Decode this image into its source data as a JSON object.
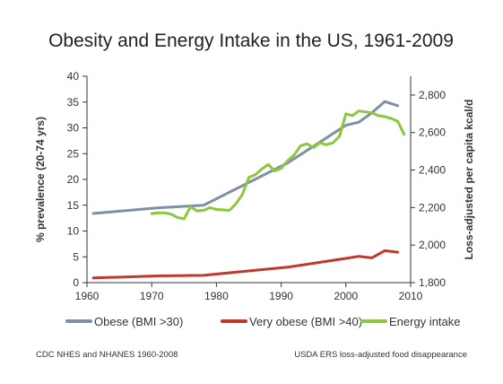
{
  "chart_data": {
    "type": "line",
    "title": "Obesity and Energy Intake in the US, 1961-2009",
    "x": {
      "label": "",
      "range": [
        1960,
        2010
      ],
      "ticks": [
        "1960",
        "1970",
        "1980",
        "1990",
        "2000",
        "2010"
      ],
      "tick_values": [
        1960,
        1970,
        1980,
        1990,
        2000,
        2010
      ]
    },
    "y_left": {
      "label": "% prevalence (20-74 yrs)",
      "range": [
        0,
        40
      ],
      "ticks": [
        "0",
        "5",
        "10",
        "15",
        "20",
        "25",
        "30",
        "35",
        "40"
      ],
      "tick_values": [
        0,
        5,
        10,
        15,
        20,
        25,
        30,
        35,
        40
      ]
    },
    "y_right": {
      "label": "Loss-adjusted per capita kcal/d",
      "range": [
        1800,
        2900
      ],
      "ticks": [
        "1,800",
        "2,000",
        "2,200",
        "2,400",
        "2,600",
        "2,800"
      ],
      "tick_values": [
        1800,
        2000,
        2200,
        2400,
        2600,
        2800
      ]
    },
    "grid": false,
    "legend_position": "bottom",
    "series": [
      {
        "name": "Obese (BMI >30)",
        "axis": "left",
        "color": "#7f8fa6",
        "points": [
          [
            1961,
            13.4
          ],
          [
            1971,
            14.5
          ],
          [
            1978,
            15.0
          ],
          [
            1991,
            23.2
          ],
          [
            2000,
            30.5
          ],
          [
            2002,
            31.1
          ],
          [
            2004,
            32.9
          ],
          [
            2006,
            35.1
          ],
          [
            2008,
            34.3
          ]
        ]
      },
      {
        "name": "Very obese (BMI >40)",
        "axis": "left",
        "color": "#c0392b",
        "points": [
          [
            1961,
            0.9
          ],
          [
            1971,
            1.3
          ],
          [
            1978,
            1.4
          ],
          [
            1991,
            3.0
          ],
          [
            2000,
            4.7
          ],
          [
            2002,
            5.1
          ],
          [
            2004,
            4.8
          ],
          [
            2006,
            6.2
          ],
          [
            2008,
            5.9
          ]
        ]
      },
      {
        "name": "Energy intake",
        "axis": "right",
        "color": "#8dc63f",
        "points": [
          [
            1970,
            2168
          ],
          [
            1971,
            2172
          ],
          [
            1972,
            2172
          ],
          [
            1973,
            2165
          ],
          [
            1974,
            2147
          ],
          [
            1975,
            2140
          ],
          [
            1976,
            2205
          ],
          [
            1977,
            2182
          ],
          [
            1978,
            2185
          ],
          [
            1979,
            2200
          ],
          [
            1980,
            2190
          ],
          [
            1981,
            2188
          ],
          [
            1982,
            2185
          ],
          [
            1983,
            2220
          ],
          [
            1984,
            2270
          ],
          [
            1985,
            2360
          ],
          [
            1986,
            2375
          ],
          [
            1987,
            2405
          ],
          [
            1988,
            2430
          ],
          [
            1989,
            2395
          ],
          [
            1990,
            2410
          ],
          [
            1991,
            2450
          ],
          [
            1992,
            2480
          ],
          [
            1993,
            2530
          ],
          [
            1994,
            2540
          ],
          [
            1995,
            2520
          ],
          [
            1996,
            2545
          ],
          [
            1997,
            2535
          ],
          [
            1998,
            2545
          ],
          [
            1999,
            2580
          ],
          [
            2000,
            2700
          ],
          [
            2001,
            2690
          ],
          [
            2002,
            2715
          ],
          [
            2003,
            2710
          ],
          [
            2004,
            2705
          ],
          [
            2005,
            2690
          ],
          [
            2006,
            2685
          ],
          [
            2007,
            2675
          ],
          [
            2008,
            2660
          ],
          [
            2009,
            2590
          ]
        ]
      }
    ]
  },
  "sources": {
    "left": "CDC NHES and NHANES 1960-2008",
    "right": "USDA ERS loss-adjusted  food disappearance"
  }
}
